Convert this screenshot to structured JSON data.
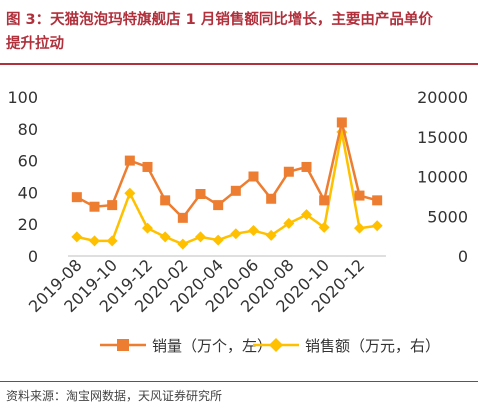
{
  "figure": {
    "title_line1": "图 3：天猫泡泡玛特旗舰店 1 月销售额同比增长，主要由产品单价",
    "title_line2": "提升拉动",
    "source": "资料来源：淘宝网数据，天风证券研究所"
  },
  "colors": {
    "series1": "#ED7D31",
    "series2": "#FFC000",
    "accent": "#b0303c"
  },
  "chart_data": {
    "type": "line",
    "x": [
      "2019-08",
      "2019-09",
      "2019-10",
      "2019-11",
      "2019-12",
      "2020-01",
      "2020-02",
      "2020-03",
      "2020-04",
      "2020-05",
      "2020-06",
      "2020-07",
      "2020-08",
      "2020-09",
      "2020-10",
      "2020-11",
      "2020-12",
      "2021-01"
    ],
    "xtick_labels": [
      "2019-08",
      "2019-10",
      "2019-12",
      "2020-02",
      "2020-04",
      "2020-06",
      "2020-08",
      "2020-10",
      "2020-12"
    ],
    "y_left_lim": [
      0,
      100
    ],
    "y_left_ticks": [
      "0",
      "20",
      "40",
      "60",
      "80",
      "100"
    ],
    "y_right_lim": [
      0,
      20000
    ],
    "y_right_ticks": [
      "0",
      "5000",
      "10000",
      "15000",
      "20000"
    ],
    "grid": false,
    "legend_position": "bottom",
    "series": [
      {
        "name": "销量（万个，左）",
        "axis": "left",
        "values": [
          37,
          31,
          32,
          60,
          56,
          35,
          24,
          39,
          32,
          41,
          50,
          36,
          53,
          56,
          35,
          84,
          38,
          35
        ]
      },
      {
        "name": "销售额（万元，右）",
        "axis": "right",
        "values": [
          2400,
          1900,
          1900,
          7900,
          3500,
          2400,
          1500,
          2400,
          2000,
          2800,
          3200,
          2600,
          4100,
          5200,
          3600,
          15600,
          3500,
          3800
        ]
      }
    ]
  }
}
